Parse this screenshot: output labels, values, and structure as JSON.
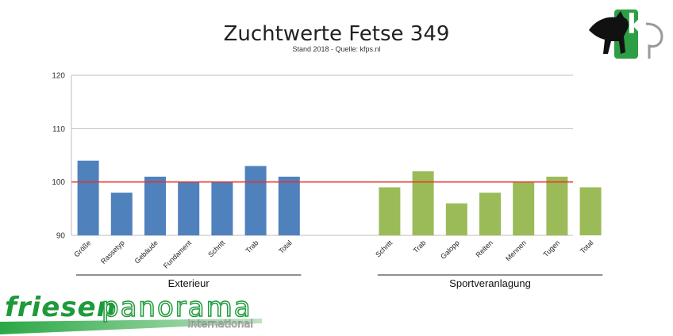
{
  "chart_data": {
    "type": "bar",
    "title": "Zuchtwerte Fetse 349",
    "subtitle": "Stand 2018 - Quelle: kfps.nl",
    "ylim": [
      90,
      120
    ],
    "yticks": [
      90,
      100,
      110,
      120
    ],
    "reference_line": 100,
    "reference_color": "#e8302a",
    "grid": true,
    "groups": [
      {
        "name": "Exterieur",
        "color": "#4f81bd",
        "categories": [
          "Größe",
          "Rassetyp",
          "Gebäude",
          "Fundament",
          "Schritt",
          "Trab",
          "Total"
        ],
        "values": [
          104,
          98,
          101,
          100,
          100,
          103,
          101
        ]
      },
      {
        "name": "Sportveranlagung",
        "color": "#9bbb59",
        "categories": [
          "Schritt",
          "Trab",
          "Galopp",
          "Reiten",
          "Mennen",
          "Tugen",
          "Total"
        ],
        "values": [
          99,
          102,
          96,
          98,
          100,
          101,
          99
        ]
      }
    ]
  },
  "logos": {
    "kfp_text": "kfp",
    "brand_part1": "friesen",
    "brand_part2": "panorama",
    "brand_sub": "International",
    "brand_color": "#1e9a3a"
  }
}
